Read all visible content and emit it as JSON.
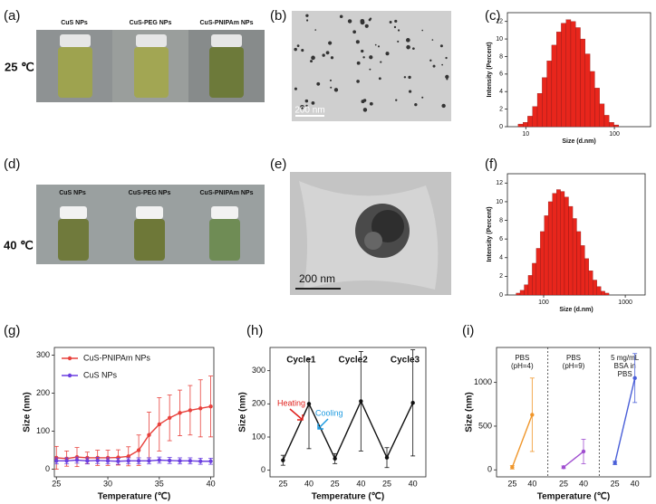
{
  "photos": [
    {
      "label": "(a)",
      "vials": [
        "CuS NPs",
        "CuS-PEG NPs",
        "CuS-PNIPAm NPs"
      ],
      "temperature": "25 ℃"
    },
    {
      "label": "(b)",
      "scale_bar": "200 nm"
    },
    {
      "label": "(d)",
      "vials": [
        "CuS NPs",
        "CuS-PEG NPs",
        "CuS-PNIPAm NPs"
      ],
      "temperature": "40 ℃"
    },
    {
      "label": "(e)",
      "scale_bar": "200 nm"
    }
  ],
  "chart_data": [
    {
      "type": "histogram",
      "label": "(c)",
      "xlabel": "Size (d.nm)",
      "ylabel": "Intensity (Percent)",
      "xscale": "log",
      "color": "#e8261c",
      "bins": [
        8.2,
        9.3,
        10.5,
        11.9,
        13.5,
        15.3,
        17.3,
        19.6,
        22.2,
        25.1,
        28.5,
        32.2,
        36.5,
        41.3,
        46.8,
        53.0,
        60.0,
        68.0,
        77.0,
        87.2,
        98.8,
        111.9
      ],
      "values": [
        0.3,
        0.5,
        1.2,
        2.3,
        3.8,
        5.6,
        7.5,
        9.3,
        10.8,
        11.8,
        12.2,
        12,
        11.3,
        10,
        8.3,
        6.3,
        4.4,
        2.6,
        1.3,
        0.5,
        0.2
      ],
      "xlim": [
        6.2,
        256
      ],
      "xticks": [
        10,
        100
      ],
      "ylim": [
        0,
        13
      ],
      "yticks": [
        0,
        2,
        4,
        6,
        8,
        10,
        12
      ]
    },
    {
      "type": "histogram",
      "label": "(f)",
      "xlabel": "Size (d.nm)",
      "ylabel": "Intensity (Percent)",
      "xscale": "log",
      "color": "#e8261c",
      "bins": [
        46,
        51.5,
        57.8,
        64.7,
        72.5,
        81.3,
        91.1,
        102,
        114,
        128,
        144,
        161,
        180,
        202,
        227,
        254,
        285,
        319,
        357,
        400,
        449,
        503,
        563,
        631
      ],
      "values": [
        0.2,
        0.5,
        1.1,
        2.1,
        3.4,
        5,
        6.8,
        8.5,
        10,
        10.9,
        11.3,
        11.1,
        10.5,
        9.5,
        8.2,
        6.8,
        5.3,
        3.9,
        2.6,
        1.6,
        0.9,
        0.4,
        0.2
      ],
      "xlim": [
        36,
        1750
      ],
      "xticks": [
        100,
        1000
      ],
      "ylim": [
        0,
        13
      ],
      "yticks": [
        0,
        2,
        4,
        6,
        8,
        10,
        12
      ]
    },
    {
      "type": "line",
      "label": "(g)",
      "xlabel": "Temperature (℃)",
      "ylabel": "Size (nm)",
      "legend": "upper left",
      "x": [
        25,
        26,
        27,
        28,
        29,
        30,
        31,
        32,
        33,
        34,
        35,
        36,
        37,
        38,
        39,
        40
      ],
      "series": [
        {
          "name": "CuS-PNIPAm NPs",
          "color": "#e8413c",
          "values": [
            30,
            28,
            32,
            30,
            30,
            30,
            31,
            34,
            50,
            90,
            118,
            135,
            148,
            155,
            160,
            165
          ],
          "errors": [
            30,
            20,
            25,
            15,
            20,
            20,
            20,
            25,
            40,
            60,
            70,
            60,
            60,
            65,
            75,
            80
          ]
        },
        {
          "name": "CuS NPs",
          "color": "#6b3fe0",
          "values": [
            22,
            22,
            24,
            22,
            23,
            22,
            21,
            22,
            22,
            22,
            24,
            23,
            22,
            22,
            21,
            21
          ],
          "errors": [
            8,
            8,
            8,
            8,
            8,
            8,
            8,
            8,
            8,
            8,
            8,
            8,
            8,
            8,
            8,
            8
          ]
        }
      ],
      "xlim": [
        24.8,
        40.3
      ],
      "xticks": [
        25,
        30,
        35,
        40
      ],
      "ylim": [
        -20,
        320
      ],
      "yticks": [
        0,
        100,
        200,
        300
      ]
    },
    {
      "type": "cycle",
      "label": "(h)",
      "xlabel": "Temperature (℃)",
      "ylabel": "Size (nm)",
      "categories": [
        "25",
        "40",
        "25",
        "40",
        "25",
        "40"
      ],
      "series": [
        {
          "color": "#111111",
          "values": [
            30,
            200,
            35,
            208,
            38,
            203
          ],
          "errors": [
            15,
            135,
            15,
            150,
            30,
            160
          ]
        }
      ],
      "annotations": {
        "cycles": [
          "Cycle1",
          "Cycle2",
          "Cycle3"
        ],
        "heating": "Heating",
        "cooling": "Cooling"
      },
      "ylim": [
        -20,
        370
      ],
      "yticks": [
        0,
        100,
        200,
        300
      ]
    },
    {
      "type": "grouped",
      "label": "(i)",
      "xlabel": "Temperature (℃)",
      "ylabel": "Size (nm)",
      "categories": [
        "25",
        "40",
        "25",
        "40",
        "25",
        "40"
      ],
      "group_labels": [
        [
          "PBS",
          "(pH=4)"
        ],
        [
          "PBS",
          "(pH=9)"
        ],
        [
          "5 mg/mL",
          "BSA in",
          "PBS"
        ]
      ],
      "series": [
        {
          "color": "#f0962a",
          "values": [
            30,
            630,
            null,
            null,
            null,
            null
          ],
          "errors": [
            20,
            420,
            null,
            null,
            null,
            null
          ]
        },
        {
          "color": "#a04fd0",
          "values": [
            null,
            null,
            30,
            210,
            null,
            null
          ],
          "errors": [
            null,
            null,
            15,
            140,
            null,
            null
          ]
        },
        {
          "color": "#4a5fd8",
          "values": [
            null,
            null,
            null,
            null,
            80,
            1050
          ],
          "errors": [
            null,
            null,
            null,
            null,
            20,
            280
          ]
        }
      ],
      "ylim": [
        -80,
        1400
      ],
      "yticks": [
        0,
        500,
        1000
      ]
    }
  ]
}
